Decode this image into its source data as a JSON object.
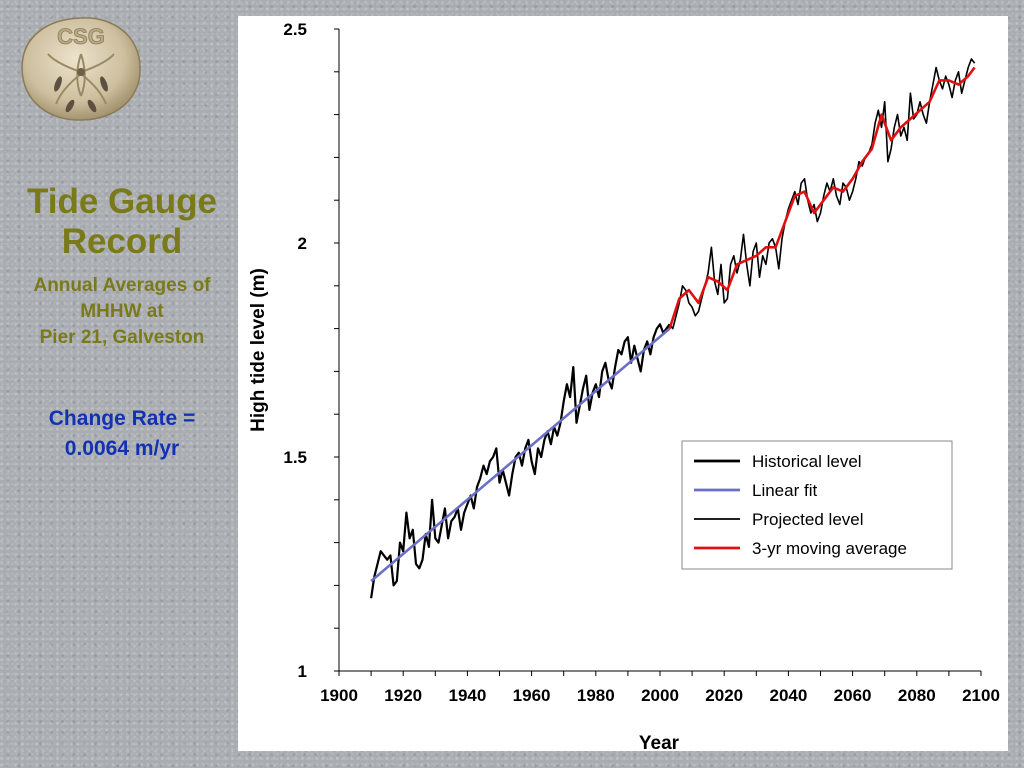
{
  "logo": {
    "text": "CSG"
  },
  "sidebar": {
    "title": [
      "Tide Gauge",
      "Record"
    ],
    "subtitle": [
      "Annual Averages of",
      "MHHW at",
      "Pier 21, Galveston"
    ],
    "rate": [
      "Change Rate =",
      "0.0064 m/yr"
    ]
  },
  "colors": {
    "title": "#7a7a1a",
    "rate": "#1232b4",
    "historical": "#000000",
    "linear_fit": "#6a6fc4",
    "projected": "#000000",
    "moving_avg": "#e01010"
  },
  "chart_data": {
    "type": "line",
    "xlabel": "Year",
    "ylabel": "High tide level (m)",
    "xlim": [
      1900,
      2100
    ],
    "ylim": [
      1,
      2.5
    ],
    "xticks": [
      "1900",
      "1920",
      "1940",
      "1960",
      "1980",
      "2000",
      "2020",
      "2040",
      "2060",
      "2080",
      "2100"
    ],
    "yticks": [
      "1",
      "1.5",
      "2",
      "2.5"
    ],
    "grid": false,
    "legend_position": "lower-right",
    "series": [
      {
        "name": "Historical level",
        "x": [
          1910,
          1911,
          1912,
          1913,
          1914,
          1915,
          1916,
          1917,
          1918,
          1919,
          1920,
          1921,
          1922,
          1923,
          1924,
          1925,
          1926,
          1927,
          1928,
          1929,
          1930,
          1931,
          1932,
          1933,
          1934,
          1935,
          1936,
          1937,
          1938,
          1939,
          1940,
          1941,
          1942,
          1943,
          1944,
          1945,
          1946,
          1947,
          1948,
          1949,
          1950,
          1951,
          1952,
          1953,
          1954,
          1955,
          1956,
          1957,
          1958,
          1959,
          1960,
          1961,
          1962,
          1963,
          1964,
          1965,
          1966,
          1967,
          1968,
          1969,
          1970,
          1971,
          1972,
          1973,
          1974,
          1975,
          1976,
          1977,
          1978,
          1979,
          1980,
          1981,
          1982,
          1983,
          1984,
          1985,
          1986,
          1987,
          1988,
          1989,
          1990,
          1991,
          1992,
          1993,
          1994,
          1995,
          1996,
          1997,
          1998,
          1999,
          2000,
          2001,
          2002,
          2003
        ],
        "y": [
          1.17,
          1.22,
          1.25,
          1.28,
          1.27,
          1.26,
          1.27,
          1.2,
          1.21,
          1.3,
          1.28,
          1.37,
          1.31,
          1.33,
          1.25,
          1.24,
          1.26,
          1.32,
          1.29,
          1.4,
          1.31,
          1.3,
          1.34,
          1.38,
          1.31,
          1.35,
          1.36,
          1.38,
          1.33,
          1.37,
          1.39,
          1.41,
          1.38,
          1.43,
          1.45,
          1.48,
          1.46,
          1.49,
          1.5,
          1.52,
          1.44,
          1.47,
          1.44,
          1.41,
          1.46,
          1.5,
          1.51,
          1.48,
          1.52,
          1.54,
          1.49,
          1.46,
          1.52,
          1.5,
          1.54,
          1.56,
          1.53,
          1.57,
          1.55,
          1.58,
          1.63,
          1.67,
          1.64,
          1.71,
          1.58,
          1.62,
          1.66,
          1.69,
          1.61,
          1.65,
          1.67,
          1.64,
          1.7,
          1.72,
          1.68,
          1.66,
          1.71,
          1.75,
          1.74,
          1.77,
          1.78,
          1.72,
          1.76,
          1.73,
          1.7,
          1.75,
          1.77,
          1.74,
          1.78,
          1.8,
          1.81,
          1.79,
          1.8,
          1.81
        ]
      },
      {
        "name": "Linear fit",
        "x": [
          1910,
          2003
        ],
        "y": [
          1.21,
          1.8
        ]
      },
      {
        "name": "Projected level",
        "x": [
          2003,
          2004,
          2005,
          2006,
          2007,
          2008,
          2009,
          2010,
          2011,
          2012,
          2013,
          2014,
          2015,
          2016,
          2017,
          2018,
          2019,
          2020,
          2021,
          2022,
          2023,
          2024,
          2025,
          2026,
          2027,
          2028,
          2029,
          2030,
          2031,
          2032,
          2033,
          2034,
          2035,
          2036,
          2037,
          2038,
          2039,
          2040,
          2041,
          2042,
          2043,
          2044,
          2045,
          2046,
          2047,
          2048,
          2049,
          2050,
          2051,
          2052,
          2053,
          2054,
          2055,
          2056,
          2057,
          2058,
          2059,
          2060,
          2061,
          2062,
          2063,
          2064,
          2065,
          2066,
          2067,
          2068,
          2069,
          2070,
          2071,
          2072,
          2073,
          2074,
          2075,
          2076,
          2077,
          2078,
          2079,
          2080,
          2081,
          2082,
          2083,
          2084,
          2085,
          2086,
          2087,
          2088,
          2089,
          2090,
          2091,
          2092,
          2093,
          2094,
          2095,
          2096,
          2097,
          2098
        ],
        "y": [
          1.81,
          1.8,
          1.83,
          1.86,
          1.9,
          1.89,
          1.86,
          1.85,
          1.83,
          1.84,
          1.87,
          1.9,
          1.93,
          1.99,
          1.91,
          1.88,
          1.95,
          1.86,
          1.87,
          1.95,
          1.97,
          1.93,
          1.96,
          2.02,
          1.95,
          1.9,
          1.98,
          2.0,
          1.92,
          1.97,
          1.95,
          2.0,
          2.01,
          1.99,
          1.94,
          2.01,
          2.05,
          2.08,
          2.1,
          2.12,
          2.09,
          2.14,
          2.15,
          2.1,
          2.07,
          2.09,
          2.05,
          2.07,
          2.11,
          2.14,
          2.12,
          2.15,
          2.11,
          2.09,
          2.14,
          2.13,
          2.1,
          2.12,
          2.15,
          2.19,
          2.18,
          2.2,
          2.21,
          2.23,
          2.28,
          2.31,
          2.27,
          2.33,
          2.19,
          2.22,
          2.27,
          2.3,
          2.25,
          2.27,
          2.24,
          2.35,
          2.29,
          2.3,
          2.33,
          2.3,
          2.28,
          2.33,
          2.37,
          2.41,
          2.38,
          2.36,
          2.39,
          2.37,
          2.34,
          2.38,
          2.4,
          2.35,
          2.38,
          2.41,
          2.43,
          2.42
        ]
      },
      {
        "name": "3-yr moving average",
        "x": [
          2003,
          2006,
          2009,
          2012,
          2015,
          2018,
          2021,
          2024,
          2027,
          2030,
          2033,
          2036,
          2039,
          2042,
          2045,
          2048,
          2051,
          2054,
          2057,
          2060,
          2063,
          2066,
          2069,
          2072,
          2075,
          2078,
          2081,
          2084,
          2087,
          2090,
          2093,
          2096,
          2098
        ],
        "y": [
          1.8,
          1.87,
          1.89,
          1.86,
          1.92,
          1.91,
          1.89,
          1.95,
          1.96,
          1.97,
          1.99,
          1.99,
          2.05,
          2.11,
          2.12,
          2.07,
          2.1,
          2.13,
          2.12,
          2.15,
          2.19,
          2.22,
          2.3,
          2.24,
          2.27,
          2.29,
          2.31,
          2.33,
          2.38,
          2.38,
          2.37,
          2.39,
          2.41
        ]
      }
    ]
  }
}
